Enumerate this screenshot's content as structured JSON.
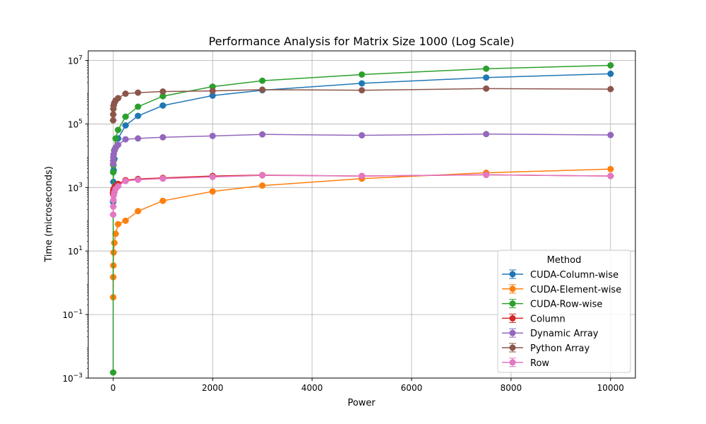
{
  "chart_data": {
    "type": "line",
    "title": "Performance Analysis for Matrix Size 1000 (Log Scale)",
    "xlabel": "Power",
    "ylabel": "Time (microseconds)",
    "xlim": [
      -500,
      10500
    ],
    "ylim": [
      0.001,
      20000000
    ],
    "yscale": "log",
    "grid": true,
    "xticks": [
      0,
      2000,
      4000,
      6000,
      8000,
      10000
    ],
    "xtick_labels": [
      "0",
      "2000",
      "4000",
      "6000",
      "8000",
      "10000"
    ],
    "yticks": [
      0.001,
      0.1,
      10,
      1000,
      100000,
      10000000
    ],
    "ytick_labels": [
      {
        "base": "10",
        "exp": "−3"
      },
      {
        "base": "10",
        "exp": "−1"
      },
      {
        "base": "10",
        "exp": "1"
      },
      {
        "base": "10",
        "exp": "3"
      },
      {
        "base": "10",
        "exp": "5"
      },
      {
        "base": "10",
        "exp": "7"
      }
    ],
    "legend": {
      "title": "Method",
      "position": "lower right"
    },
    "x": [
      1,
      2,
      5,
      10,
      25,
      50,
      100,
      250,
      500,
      1000,
      2000,
      3000,
      5000,
      7500,
      10000
    ],
    "series": [
      {
        "name": "CUDA-Column-wise",
        "color": "#1f77b4",
        "values": [
          350,
          700,
          1500,
          3500,
          8000,
          18000,
          35000,
          90000,
          180000,
          380000,
          780000,
          1150000,
          1900000,
          2900000,
          3800000
        ]
      },
      {
        "name": "CUDA-Element-wise",
        "color": "#ff7f0e",
        "values": [
          0.35,
          1.5,
          3.5,
          9,
          18,
          35,
          70,
          90,
          180,
          380,
          750,
          1150,
          1900,
          2900,
          3800
        ]
      },
      {
        "name": "CUDA-Row-wise",
        "color": "#2ca02c",
        "values": [
          0.0015,
          3000,
          5000,
          7000,
          15000,
          35000,
          65000,
          170000,
          350000,
          750000,
          1500000,
          2300000,
          3600000,
          5500000,
          7000000
        ]
      },
      {
        "name": "Column",
        "color": "#d62728",
        "values": [
          600,
          700,
          800,
          900,
          1000,
          1100,
          1300,
          1700,
          1850,
          2000,
          2300,
          2450,
          2300,
          2500,
          2300
        ]
      },
      {
        "name": "Dynamic Array",
        "color": "#9467bd",
        "values": [
          5500,
          7000,
          9000,
          11000,
          14000,
          18000,
          22000,
          33000,
          35000,
          38000,
          42000,
          47000,
          44000,
          48000,
          45000
        ]
      },
      {
        "name": "Python Array",
        "color": "#8c564b",
        "values": [
          130000,
          200000,
          300000,
          380000,
          460000,
          550000,
          650000,
          900000,
          970000,
          1050000,
          1100000,
          1200000,
          1150000,
          1300000,
          1250000
        ]
      },
      {
        "name": "Row",
        "color": "#e377c2",
        "values": [
          140,
          250,
          400,
          550,
          700,
          900,
          1100,
          1600,
          1750,
          1900,
          2150,
          2400,
          2300,
          2500,
          2300
        ]
      }
    ]
  }
}
